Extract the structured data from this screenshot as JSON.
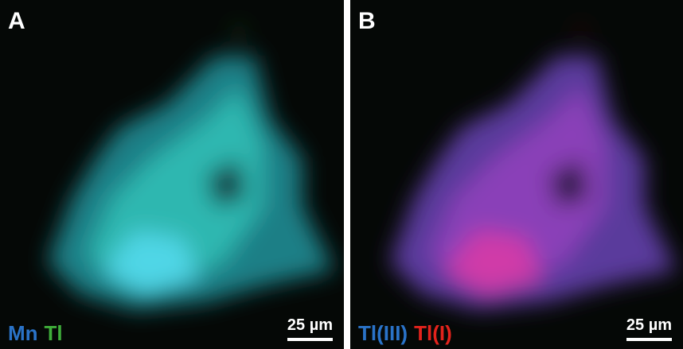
{
  "panels": [
    {
      "label": "A",
      "legend": [
        {
          "text": "Mn",
          "color": "#2a73c8"
        },
        {
          "text": "Tl",
          "color": "#3fae3a"
        }
      ],
      "scale_bar": "25 µm"
    },
    {
      "label": "B",
      "legend": [
        {
          "text": "Tl(III)",
          "color": "#2a73c8"
        },
        {
          "text": "Tl(I)",
          "color": "#e3231c"
        }
      ],
      "scale_bar": "25 µm"
    }
  ]
}
